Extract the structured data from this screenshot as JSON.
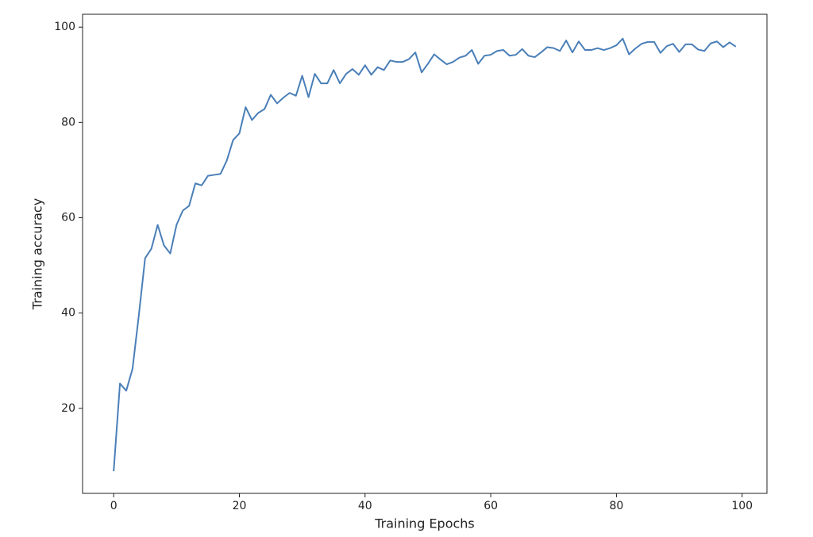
{
  "chart_data": {
    "type": "line",
    "x_label": "Training Epochs",
    "y_label": "Training accuracy",
    "x": [
      0,
      1,
      2,
      3,
      4,
      5,
      6,
      7,
      8,
      9,
      10,
      11,
      12,
      13,
      14,
      15,
      16,
      17,
      18,
      19,
      20,
      21,
      22,
      23,
      24,
      25,
      26,
      27,
      28,
      29,
      30,
      31,
      32,
      33,
      34,
      35,
      36,
      37,
      38,
      39,
      40,
      41,
      42,
      43,
      44,
      45,
      46,
      47,
      48,
      49,
      50,
      51,
      52,
      53,
      54,
      55,
      56,
      57,
      58,
      59,
      60,
      61,
      62,
      63,
      64,
      65,
      66,
      67,
      68,
      69,
      70,
      71,
      72,
      73,
      74,
      75,
      76,
      77,
      78,
      79,
      80,
      81,
      82,
      83,
      84,
      85,
      86,
      87,
      88,
      89,
      90,
      91,
      92,
      93,
      94,
      95,
      96,
      97,
      98,
      99
    ],
    "series": [
      {
        "color": "#4a7fb8",
        "values": [
          6.8,
          25.2,
          23.7,
          28.3,
          39.5,
          51.5,
          53.5,
          58.5,
          54.2,
          52.5,
          58.5,
          61.5,
          62.5,
          67.2,
          66.8,
          68.8,
          69.0,
          69.2,
          72.0,
          76.3,
          77.7,
          83.2,
          80.5,
          82.0,
          82.8,
          85.8,
          84.0,
          85.2,
          86.2,
          85.6,
          89.8,
          85.3,
          90.2,
          88.2,
          88.2,
          91.0,
          88.2,
          90.2,
          91.2,
          90.0,
          92.0,
          90.0,
          91.6,
          91.0,
          93.0,
          92.7,
          92.7,
          93.3,
          94.7,
          90.5,
          92.3,
          94.3,
          93.2,
          92.2,
          92.7,
          93.6,
          94.0,
          95.2,
          92.3,
          94.0,
          94.2,
          95.0,
          95.2,
          94.0,
          94.2,
          95.4,
          94.0,
          93.7,
          94.7,
          95.8,
          95.6,
          95.0,
          97.2,
          94.7,
          97.0,
          95.2,
          95.2,
          95.6,
          95.2,
          95.6,
          96.2,
          97.6,
          94.3,
          95.5,
          96.5,
          96.9,
          96.9,
          94.6,
          96.0,
          96.5,
          94.8,
          96.4,
          96.4,
          95.3,
          95.0,
          96.6,
          97.0,
          95.8,
          96.8,
          95.9
        ]
      }
    ],
    "xlim": [
      -4.95,
      103.95
    ],
    "ylim": [
      2.15,
      102.7
    ],
    "xticks": [
      0,
      20,
      40,
      60,
      80,
      100
    ],
    "yticks": [
      20,
      40,
      60,
      80,
      100
    ],
    "grid": false
  }
}
